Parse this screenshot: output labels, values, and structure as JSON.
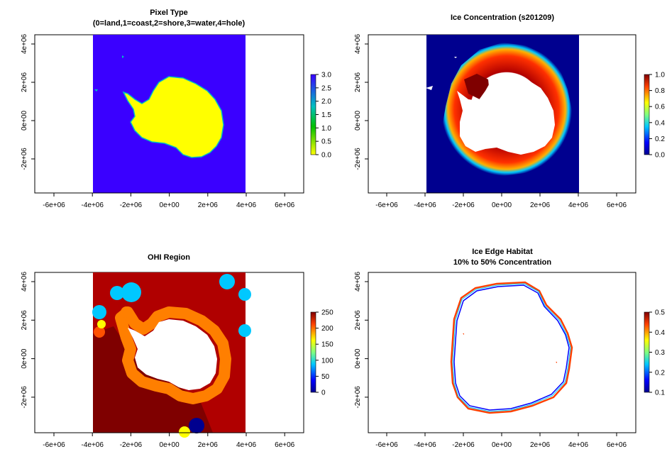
{
  "colors": {
    "blue_fill": "#3a00ff",
    "yellow": "#ffff00",
    "dark_navy": "#00008f",
    "dark_red": "#b00000",
    "darker_red": "#7f0000",
    "orange": "#ff7f00",
    "cyan": "#00c8ff"
  },
  "panels": [
    {
      "title_line1": "Pixel Type",
      "title_line2": "(0=land,1=coast,2=shore,3=water,4=hole)",
      "x_ticks": [
        "-6e+06",
        "-4e+06",
        "-2e+06",
        "0e+00",
        "2e+06",
        "4e+06",
        "6e+06"
      ],
      "y_ticks": [
        "4e+06",
        "2e+06",
        "0e+00",
        "-2e+06"
      ],
      "colorbar_ticks": [
        "3.0",
        "2.5",
        "2.0",
        "1.5",
        "1.0",
        "0.5",
        "0.0"
      ],
      "colorbar_palette": "terrain-like (yellow to blue)"
    },
    {
      "title_line1": "Ice Concentration (s201209)",
      "title_line2": "",
      "x_ticks": [
        "-6e+06",
        "-4e+06",
        "-2e+06",
        "0e+00",
        "2e+06",
        "4e+06",
        "6e+06"
      ],
      "y_ticks": [
        "4e+06",
        "2e+06",
        "0e+00",
        "-2e+06"
      ],
      "colorbar_ticks": [
        "1.0",
        "0.8",
        "0.6",
        "0.4",
        "0.2",
        "0.0"
      ],
      "colorbar_palette": "jet (blue to red)"
    },
    {
      "title_line1": "OHI Region",
      "title_line2": "",
      "x_ticks": [
        "-6e+06",
        "-4e+06",
        "-2e+06",
        "0e+00",
        "2e+06",
        "4e+06",
        "6e+06"
      ],
      "y_ticks": [
        "4e+06",
        "2e+06",
        "0e+00",
        "-2e+06"
      ],
      "colorbar_ticks": [
        "250",
        "200",
        "150",
        "100",
        "50",
        "0"
      ],
      "colorbar_palette": "jet (blue to red)"
    },
    {
      "title_line1": "Ice Edge Habitat",
      "title_line2": "10% to 50% Concentration",
      "x_ticks": [
        "-6e+06",
        "-4e+06",
        "-2e+06",
        "0e+00",
        "2e+06",
        "4e+06",
        "6e+06"
      ],
      "y_ticks": [
        "4e+06",
        "2e+06",
        "0e+00",
        "-2e+06"
      ],
      "colorbar_ticks": [
        "0.5",
        "0.4",
        "0.3",
        "0.2",
        "0.1"
      ],
      "colorbar_palette": "jet (blue to red)"
    }
  ],
  "chart_data": [
    {
      "type": "heatmap",
      "title": "Pixel Type\n(0=land,1=coast,2=shore,3=water,4=hole)",
      "xlim": [
        -7000000,
        7000000
      ],
      "ylim": [
        -4000000,
        4500000
      ],
      "colorbar_range": [
        0,
        3
      ],
      "legend": "right"
    },
    {
      "type": "heatmap",
      "title": "Ice Concentration (s201209)",
      "xlim": [
        -7000000,
        7000000
      ],
      "ylim": [
        -4000000,
        4500000
      ],
      "colorbar_range": [
        0,
        1
      ],
      "legend": "right"
    },
    {
      "type": "heatmap",
      "title": "OHI Region",
      "xlim": [
        -7000000,
        7000000
      ],
      "ylim": [
        -4000000,
        4500000
      ],
      "colorbar_range": [
        0,
        280
      ],
      "legend": "right"
    },
    {
      "type": "heatmap",
      "title": "Ice Edge Habitat\n10% to 50% Concentration",
      "xlim": [
        -7000000,
        7000000
      ],
      "ylim": [
        -4000000,
        4500000
      ],
      "colorbar_range": [
        0.1,
        0.5
      ],
      "legend": "right"
    }
  ]
}
